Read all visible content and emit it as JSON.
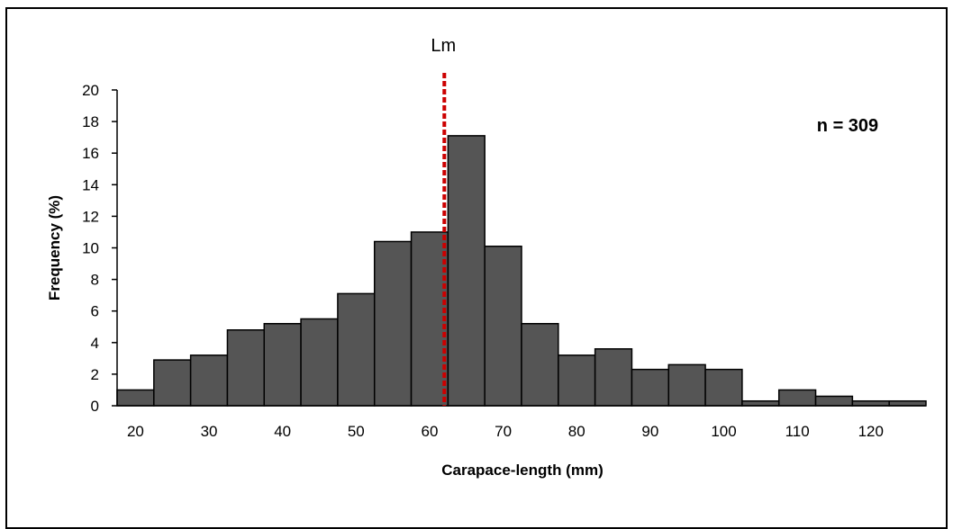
{
  "chart_data": {
    "type": "bar",
    "title": "",
    "xlabel": "Carapace-length (mm)",
    "ylabel": "Frequency (%)",
    "bin_width": 5,
    "x": [
      20,
      25,
      30,
      35,
      40,
      45,
      50,
      55,
      60,
      65,
      70,
      75,
      80,
      85,
      90,
      95,
      100,
      105,
      110,
      115,
      120,
      125
    ],
    "values": [
      1.0,
      2.9,
      3.2,
      4.8,
      5.2,
      5.5,
      7.1,
      10.4,
      11.0,
      17.1,
      10.1,
      5.2,
      3.2,
      3.6,
      2.3,
      2.6,
      2.3,
      0.3,
      1.0,
      0.6,
      0.3,
      0.3
    ],
    "xlim": [
      17.5,
      127.5
    ],
    "ylim": [
      0,
      20
    ],
    "xticks": [
      20,
      30,
      40,
      50,
      60,
      70,
      80,
      90,
      100,
      110,
      120
    ],
    "yticks": [
      0,
      2,
      4,
      6,
      8,
      10,
      12,
      14,
      16,
      18,
      20
    ],
    "bar_color": "#555555",
    "bar_edge_color": "#000000",
    "grid": false,
    "legend": false,
    "reference_line": {
      "label": "Lm",
      "x": 62,
      "color": "#cc0000",
      "style": "dashed"
    },
    "annotation": "n = 309"
  }
}
